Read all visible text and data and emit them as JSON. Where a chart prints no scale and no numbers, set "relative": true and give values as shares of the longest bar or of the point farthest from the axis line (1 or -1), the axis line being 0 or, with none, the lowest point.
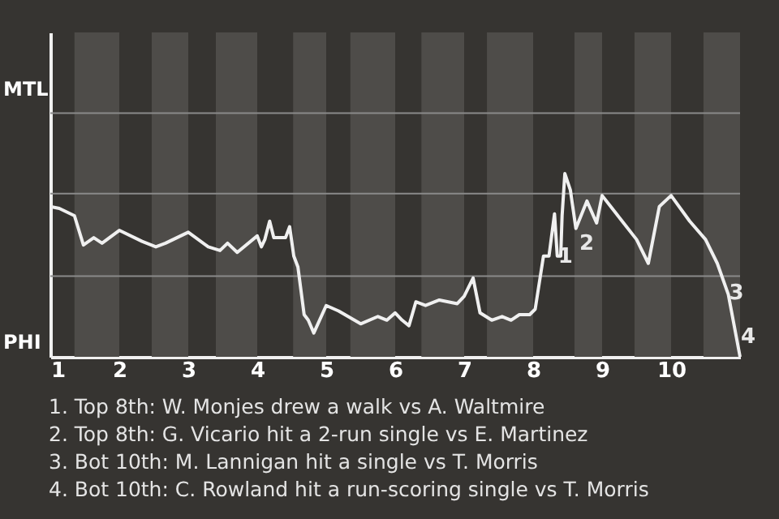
{
  "chart_data": {
    "type": "line",
    "relative": true,
    "x": [
      1.0,
      1.13,
      1.35,
      1.48,
      1.63,
      1.75,
      2.0,
      2.33,
      2.53,
      2.67,
      3.0,
      3.29,
      3.46,
      3.57,
      3.71,
      4.0,
      4.06,
      4.11,
      4.18,
      4.24,
      4.41,
      4.47,
      4.53,
      4.59,
      4.68,
      4.74,
      4.82,
      5.0,
      5.18,
      5.5,
      5.75,
      5.88,
      6.0,
      6.1,
      6.2,
      6.3,
      6.44,
      6.64,
      6.9,
      7.0,
      7.13,
      7.23,
      7.4,
      7.55,
      7.68,
      7.8,
      7.95,
      8.03,
      8.15,
      8.23,
      8.31,
      8.35,
      8.4,
      8.42,
      8.46,
      8.54,
      8.62,
      8.78,
      8.92,
      9.0,
      9.5,
      9.67,
      9.83,
      10.0,
      10.27,
      10.5,
      10.67,
      10.83,
      11.0
    ],
    "series": [
      {
        "color": "#f0f0f0",
        "values": [
          0.82,
          0.81,
          0.77,
          0.61,
          0.65,
          0.62,
          0.69,
          0.63,
          0.6,
          0.62,
          0.68,
          0.6,
          0.58,
          0.62,
          0.57,
          0.66,
          0.6,
          0.64,
          0.74,
          0.65,
          0.65,
          0.71,
          0.55,
          0.49,
          0.23,
          0.2,
          0.13,
          0.28,
          0.25,
          0.18,
          0.22,
          0.2,
          0.24,
          0.2,
          0.17,
          0.3,
          0.28,
          0.31,
          0.29,
          0.33,
          0.43,
          0.24,
          0.2,
          0.22,
          0.2,
          0.23,
          0.23,
          0.26,
          0.55,
          0.55,
          0.78,
          0.55,
          0.55,
          0.77,
          1,
          0.91,
          0.7,
          0.85,
          0.73,
          0.88,
          0.64,
          0.51,
          0.82,
          0.88,
          0.74,
          0.64,
          0.51,
          0.34,
          0
        ]
      }
    ],
    "xlim": [
      1,
      11
    ],
    "xticks": [
      1,
      2,
      3,
      4,
      5,
      6,
      7,
      8,
      9,
      10
    ],
    "ref_lines": [
      {
        "axis": "y",
        "value": 0.44,
        "color": "#8a8a8a"
      },
      {
        "axis": "y",
        "value": 0.89,
        "color": "#8a8a8a"
      },
      {
        "axis": "y",
        "value": 1.33,
        "color": "#8a8a8a"
      }
    ],
    "bands": [
      {
        "axis": "x",
        "from": 1.35,
        "to": 2,
        "color": "#4e4c49"
      },
      {
        "axis": "x",
        "from": 2.47,
        "to": 3,
        "color": "#4e4c49"
      },
      {
        "axis": "x",
        "from": 3.4,
        "to": 4,
        "color": "#4e4c49"
      },
      {
        "axis": "x",
        "from": 4.52,
        "to": 5,
        "color": "#4e4c49"
      },
      {
        "axis": "x",
        "from": 5.35,
        "to": 6,
        "color": "#4e4c49"
      },
      {
        "axis": "x",
        "from": 6.38,
        "to": 7,
        "color": "#4e4c49"
      },
      {
        "axis": "x",
        "from": 7.33,
        "to": 8,
        "color": "#4e4c49"
      },
      {
        "axis": "x",
        "from": 8.6,
        "to": 9,
        "color": "#4e4c49"
      },
      {
        "axis": "x",
        "from": 9.47,
        "to": 10,
        "color": "#4e4c49"
      },
      {
        "axis": "x",
        "from": 10.47,
        "to": 11,
        "color": "#4e4c49"
      }
    ],
    "annotations": [
      "MTL",
      "PHI",
      {
        "text": "1",
        "x": 8.35,
        "y": 0.55
      },
      {
        "text": "2",
        "x": 8.66,
        "y": 0.62
      },
      {
        "text": "3",
        "x": 10.83,
        "y": 0.35
      },
      {
        "text": "4",
        "x": 11,
        "y": 0.11
      },
      "1. Top 8th: W. Monjes drew a walk vs A. Waltmire",
      "2. Top 8th: G. Vicario hit a 2-run single vs E. Martinez",
      "3. Bot 10th: M. Lannigan hit a single vs T. Morris",
      "4. Bot 10th: C. Rowland hit a run-scoring single vs T. Morris"
    ]
  }
}
